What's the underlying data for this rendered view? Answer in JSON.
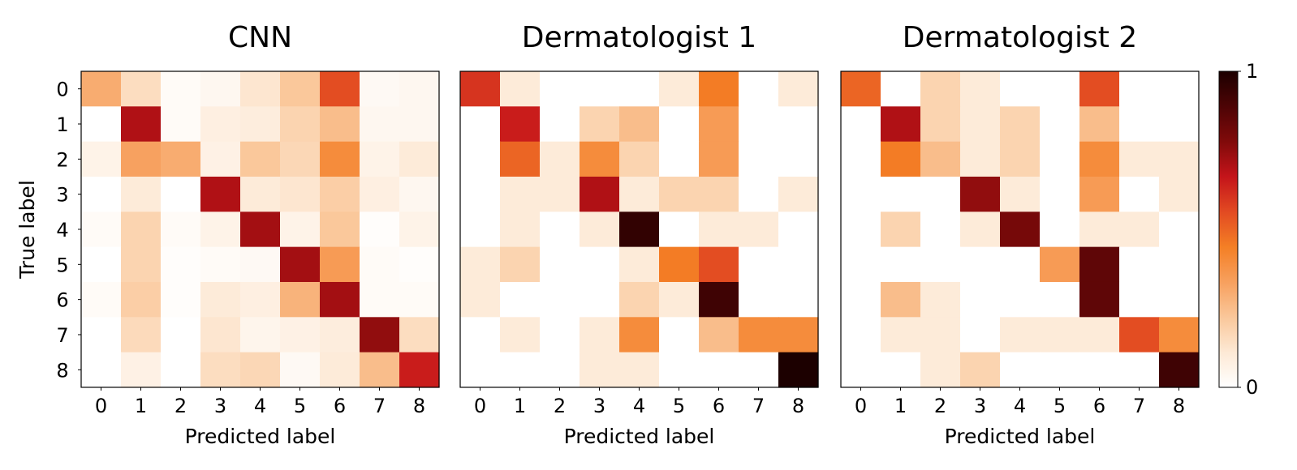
{
  "chart_data": {
    "type": "heatmap",
    "ylabel": "True label",
    "xlabel": "Predicted label",
    "x_ticks": [
      "0",
      "1",
      "2",
      "3",
      "4",
      "5",
      "6",
      "7",
      "8"
    ],
    "y_ticks": [
      "0",
      "1",
      "2",
      "3",
      "4",
      "5",
      "6",
      "7",
      "8"
    ],
    "colormap": "gist_heat_r",
    "colorbar": {
      "min": 0,
      "max": 1,
      "min_label": "0",
      "max_label": "1",
      "colors": [
        "#ffffff",
        "#fde9d5",
        "#fac79a",
        "#f7a05e",
        "#f47f25",
        "#e24a22",
        "#c4141a",
        "#800a0a",
        "#4d0405",
        "#1c0000"
      ]
    },
    "panels": [
      {
        "title": "CNN",
        "matrix": [
          [
            0.3,
            0.15,
            0.02,
            0.04,
            0.12,
            0.22,
            0.55,
            0.03,
            0.04
          ],
          [
            0.0,
            0.7,
            0.02,
            0.08,
            0.09,
            0.18,
            0.25,
            0.04,
            0.04
          ],
          [
            0.06,
            0.33,
            0.3,
            0.07,
            0.22,
            0.17,
            0.4,
            0.06,
            0.1
          ],
          [
            0.0,
            0.1,
            0.0,
            0.7,
            0.1,
            0.12,
            0.2,
            0.08,
            0.04
          ],
          [
            0.02,
            0.18,
            0.02,
            0.06,
            0.72,
            0.06,
            0.22,
            0.01,
            0.06
          ],
          [
            0.0,
            0.18,
            0.01,
            0.02,
            0.03,
            0.72,
            0.35,
            0.02,
            0.01
          ],
          [
            0.02,
            0.2,
            0.01,
            0.1,
            0.08,
            0.28,
            0.72,
            0.02,
            0.02
          ],
          [
            0.0,
            0.16,
            0.0,
            0.12,
            0.05,
            0.07,
            0.09,
            0.75,
            0.15
          ],
          [
            0.0,
            0.07,
            0.0,
            0.15,
            0.17,
            0.03,
            0.1,
            0.25,
            0.65
          ]
        ]
      },
      {
        "title": "Dermatologist 1",
        "matrix": [
          [
            0.6,
            0.1,
            0.0,
            0.0,
            0.0,
            0.1,
            0.45,
            0.0,
            0.1
          ],
          [
            0.0,
            0.65,
            0.0,
            0.18,
            0.25,
            0.0,
            0.35,
            0.0,
            0.0
          ],
          [
            0.0,
            0.5,
            0.1,
            0.4,
            0.18,
            0.0,
            0.35,
            0.0,
            0.0
          ],
          [
            0.0,
            0.1,
            0.1,
            0.7,
            0.1,
            0.18,
            0.18,
            0.0,
            0.1
          ],
          [
            0.0,
            0.1,
            0.0,
            0.1,
            0.95,
            0.0,
            0.1,
            0.1,
            0.0
          ],
          [
            0.1,
            0.18,
            0.0,
            0.0,
            0.1,
            0.45,
            0.55,
            0.0,
            0.0
          ],
          [
            0.1,
            0.0,
            0.0,
            0.0,
            0.18,
            0.1,
            0.92,
            0.0,
            0.0
          ],
          [
            0.0,
            0.1,
            0.0,
            0.1,
            0.4,
            0.0,
            0.25,
            0.4,
            0.4
          ],
          [
            0.0,
            0.0,
            0.0,
            0.1,
            0.1,
            0.0,
            0.0,
            0.0,
            1.0
          ]
        ]
      },
      {
        "title": "Dermatologist 2",
        "matrix": [
          [
            0.5,
            0.0,
            0.18,
            0.1,
            0.0,
            0.0,
            0.55,
            0.0,
            0.0
          ],
          [
            0.0,
            0.7,
            0.18,
            0.1,
            0.18,
            0.0,
            0.25,
            0.0,
            0.0
          ],
          [
            0.0,
            0.45,
            0.25,
            0.1,
            0.18,
            0.0,
            0.4,
            0.1,
            0.1
          ],
          [
            0.0,
            0.0,
            0.0,
            0.75,
            0.1,
            0.0,
            0.35,
            0.0,
            0.1
          ],
          [
            0.0,
            0.18,
            0.0,
            0.1,
            0.8,
            0.0,
            0.1,
            0.1,
            0.0
          ],
          [
            0.0,
            0.0,
            0.0,
            0.0,
            0.0,
            0.35,
            0.85,
            0.0,
            0.0
          ],
          [
            0.0,
            0.25,
            0.1,
            0.0,
            0.0,
            0.0,
            0.85,
            0.0,
            0.0
          ],
          [
            0.0,
            0.1,
            0.1,
            0.0,
            0.1,
            0.1,
            0.1,
            0.55,
            0.4
          ],
          [
            0.0,
            0.0,
            0.1,
            0.18,
            0.0,
            0.0,
            0.0,
            0.0,
            0.92
          ]
        ]
      }
    ]
  }
}
